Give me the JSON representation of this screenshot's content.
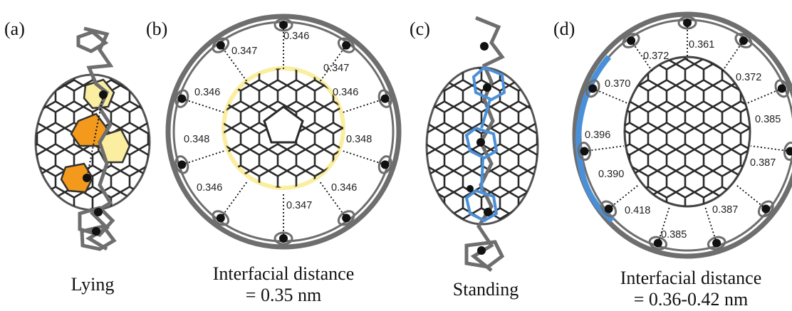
{
  "panels": [
    {
      "label": "(a)",
      "caption": "Lying"
    },
    {
      "label": "(b)",
      "caption_line1": "Interfacial distance",
      "caption_line2": "= 0.35 nm"
    },
    {
      "label": "(c)",
      "caption": "Standing"
    },
    {
      "label": "(d)",
      "caption_line1": "Interfacial distance",
      "caption_line2": "= 0.36-0.42 nm"
    }
  ],
  "distances_b": [
    "0.346",
    "0.347",
    "0.347",
    "0.346",
    "0.346",
    "0.348",
    "0.348",
    "0.346",
    "0.346",
    "0.347"
  ],
  "distances_d": [
    "0.361",
    "0.372",
    "0.372",
    "0.370",
    "0.385",
    "0.396",
    "0.387",
    "0.390",
    "0.387",
    "0.418",
    "0.385"
  ],
  "colors": {
    "framework": "#6e6e6e",
    "highlight_blue": "#4a90d9",
    "highlight_orange": "#f39a1d",
    "highlight_yellow": "#fbeea0",
    "atom": "#111111"
  }
}
